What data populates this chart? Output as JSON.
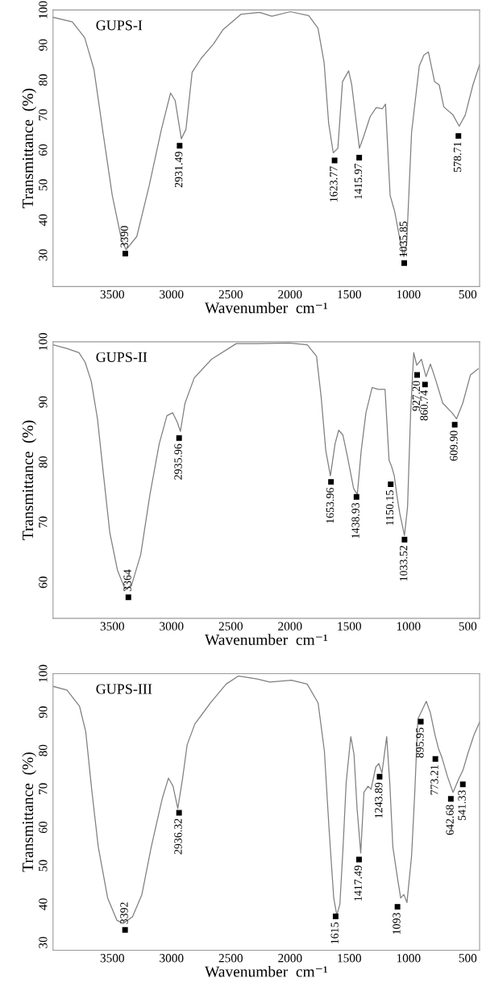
{
  "chart_data": [
    {
      "type": "line",
      "title": "GUPS-I",
      "xlabel": "Wavenumber  cm⁻¹",
      "ylabel": "Transmittance  (%)",
      "xlim": [
        4000,
        400
      ],
      "ylim": [
        21,
        100
      ],
      "xticks": [
        3500,
        3000,
        2500,
        2000,
        1500,
        1000,
        500
      ],
      "yticks": [
        30,
        40,
        50,
        60,
        70,
        80,
        90,
        100
      ],
      "grid": false,
      "legend": false,
      "marker": "none",
      "line_style": "solid",
      "series": [
        {
          "color": "#7f7f7f",
          "x": [
            4000,
            3837,
            3733,
            3655,
            3578,
            3500,
            3422,
            3383,
            3293,
            3189,
            3085,
            3008,
            2969,
            2917,
            2878,
            2826,
            2749,
            2645,
            2567,
            2412,
            2256,
            2153,
            1997,
            1842,
            1764,
            1712,
            1674,
            1635,
            1596,
            1557,
            1505,
            1479,
            1440,
            1414,
            1376,
            1324,
            1272,
            1220,
            1194,
            1155,
            1117,
            1065,
            1040,
            1015,
            974,
            909,
            870,
            832,
            780,
            741,
            702,
            624,
            572,
            521,
            456,
            400
          ],
          "values": [
            97.9,
            96.6,
            92.1,
            83.1,
            65.0,
            47.0,
            34.4,
            31.5,
            35.3,
            49.7,
            65.9,
            76.3,
            74.1,
            63.2,
            65.9,
            82.2,
            86.2,
            90.3,
            94.3,
            98.8,
            99.3,
            98.2,
            99.5,
            98.4,
            94.8,
            84.9,
            67.7,
            59.2,
            60.5,
            79.5,
            82.6,
            78.6,
            67.7,
            60.5,
            64.1,
            69.5,
            72.1,
            71.8,
            73.1,
            47.0,
            42.5,
            33.0,
            29.5,
            33.5,
            65.0,
            84.0,
            87.1,
            88.0,
            79.5,
            78.6,
            72.3,
            70.0,
            66.8,
            70.0,
            78.6,
            84.4
          ]
        }
      ],
      "annotations": [
        {
          "text": "3390",
          "x": 3390,
          "y": 30.4
        },
        {
          "text": "2931.49",
          "x": 2931.49,
          "y": 61.2
        },
        {
          "text": "1623.77",
          "x": 1623.77,
          "y": 57
        },
        {
          "text": "1415.97",
          "x": 1415.97,
          "y": 57.8
        },
        {
          "text": "1035.85",
          "x": 1035.85,
          "y": 27.7
        },
        {
          "text": "578.71",
          "x": 578.71,
          "y": 64
        }
      ]
    },
    {
      "type": "line",
      "title": "GUPS-II",
      "xlabel": "Wavenumber  cm⁻¹",
      "ylabel": "Transmittance  (%)",
      "xlim": [
        4000,
        400
      ],
      "ylim": [
        54,
        100
      ],
      "xticks": [
        3500,
        3000,
        2500,
        2000,
        1500,
        1000,
        500
      ],
      "yticks": [
        60,
        70,
        80,
        90,
        100
      ],
      "grid": false,
      "legend": false,
      "marker": "none",
      "line_style": "solid",
      "series": [
        {
          "color": "#7f7f7f",
          "x": [
            4000,
            3885,
            3781,
            3729,
            3677,
            3625,
            3573,
            3521,
            3456,
            3391,
            3339,
            3260,
            3182,
            3104,
            3039,
            2990,
            2951,
            2925,
            2886,
            2808,
            2662,
            2453,
            2271,
            2010,
            1854,
            1776,
            1737,
            1698,
            1659,
            1620,
            1589,
            1554,
            1515,
            1463,
            1432,
            1399,
            1359,
            1307,
            1255,
            1198,
            1164,
            1143,
            1120,
            1099,
            1073,
            1034,
            1008,
            982,
            956,
            930,
            891,
            852,
            815,
            776,
            711,
            633,
            594,
            542,
            477,
            412
          ],
          "values": [
            99.5,
            98.9,
            98.2,
            96.6,
            93.4,
            87.2,
            77.7,
            68.3,
            62.0,
            58.8,
            59.4,
            64.6,
            74.6,
            83.0,
            87.7,
            88.2,
            86.6,
            85.1,
            89.8,
            94.0,
            97.1,
            99.7,
            99.7,
            99.8,
            99.5,
            97.6,
            90.8,
            81.9,
            77.7,
            83.0,
            85.3,
            84.5,
            80.9,
            75.6,
            74.6,
            81.9,
            88.2,
            92.4,
            92.1,
            92.1,
            80.3,
            79.3,
            77.7,
            74.6,
            71.4,
            67.8,
            72.5,
            88.2,
            98.2,
            96.1,
            97.1,
            94.2,
            96.3,
            94.0,
            89.8,
            88.2,
            87.2,
            89.8,
            94.5,
            95.5
          ]
        }
      ],
      "annotations": [
        {
          "text": "3364",
          "x": 3364,
          "y": 57.5
        },
        {
          "text": "2935.96",
          "x": 2935.96,
          "y": 84.0
        },
        {
          "text": "1653.96",
          "x": 1653.96,
          "y": 76.7
        },
        {
          "text": "1438.93",
          "x": 1438.93,
          "y": 74.2
        },
        {
          "text": "1150.15",
          "x": 1150.15,
          "y": 76.3
        },
        {
          "text": "1033.52",
          "x": 1033.52,
          "y": 67.1
        },
        {
          "text": "927.20",
          "x": 927.2,
          "y": 94.5
        },
        {
          "text": "860.74",
          "x": 860.74,
          "y": 92.9
        },
        {
          "text": "609.90",
          "x": 609.9,
          "y": 86.2
        }
      ]
    },
    {
      "type": "line",
      "title": "GUPS-III",
      "xlabel": "Wavenumber  cm⁻¹",
      "ylabel": "Transmittance  (%)",
      "xlim": [
        4000,
        400
      ],
      "ylim": [
        28,
        100
      ],
      "xticks": [
        3500,
        3000,
        2500,
        2000,
        1500,
        1000,
        500
      ],
      "yticks": [
        30,
        40,
        50,
        60,
        70,
        80,
        90,
        100
      ],
      "grid": false,
      "legend": false,
      "marker": "none",
      "line_style": "solid",
      "series": [
        {
          "color": "#7f7f7f",
          "x": [
            4000,
            3882,
            3776,
            3724,
            3671,
            3618,
            3539,
            3461,
            3408,
            3329,
            3250,
            3171,
            3079,
            3026,
            2987,
            2947,
            2908,
            2868,
            2803,
            2671,
            2539,
            2434,
            2276,
            2171,
            1987,
            1855,
            1763,
            1710,
            1671,
            1631,
            1605,
            1579,
            1552,
            1526,
            1487,
            1460,
            1434,
            1403,
            1376,
            1342,
            1316,
            1276,
            1250,
            1224,
            1203,
            1184,
            1158,
            1132,
            1092,
            1066,
            1039,
            1013,
            974,
            947,
            921,
            882,
            850,
            816,
            776,
            745,
            718,
            671,
            624,
            579,
            540,
            500,
            448,
            400
          ],
          "values": [
            96.7,
            95.7,
            91.5,
            84.9,
            69.1,
            54.9,
            41.6,
            35.8,
            35.0,
            36.7,
            42.5,
            54.9,
            67.4,
            72.8,
            70.7,
            64.9,
            72.4,
            81.5,
            86.9,
            92.4,
            97.3,
            99.4,
            98.6,
            97.8,
            98.3,
            97.3,
            92.4,
            79.9,
            59.9,
            41.6,
            37.1,
            40.0,
            54.9,
            71.6,
            83.6,
            79.1,
            64.9,
            53.3,
            69.1,
            70.7,
            69.9,
            75.7,
            76.6,
            74.1,
            79.1,
            83.6,
            71.6,
            54.9,
            46.6,
            41.6,
            42.5,
            40.4,
            52.5,
            69.1,
            88.2,
            90.7,
            92.8,
            89.9,
            84.0,
            80.3,
            78.2,
            73.2,
            69.1,
            72.4,
            74.9,
            79.1,
            84.0,
            87.4
          ]
        }
      ],
      "annotations": [
        {
          "text": "3392",
          "x": 3392,
          "y": 33.3
        },
        {
          "text": "2936.32",
          "x": 2936.32,
          "y": 63.8
        },
        {
          "text": "1615",
          "x": 1615,
          "y": 36.8
        },
        {
          "text": "1417.49",
          "x": 1417.49,
          "y": 51.6
        },
        {
          "text": "1243.89",
          "x": 1243.89,
          "y": 73.2
        },
        {
          "text": "1093",
          "x": 1093,
          "y": 39.3
        },
        {
          "text": "895.95",
          "x": 895.95,
          "y": 87.5
        },
        {
          "text": "773.21",
          "x": 773.21,
          "y": 77.8
        },
        {
          "text": "642.68",
          "x": 642.68,
          "y": 67.4
        },
        {
          "text": "541.33",
          "x": 541.33,
          "y": 71.2
        }
      ]
    }
  ]
}
